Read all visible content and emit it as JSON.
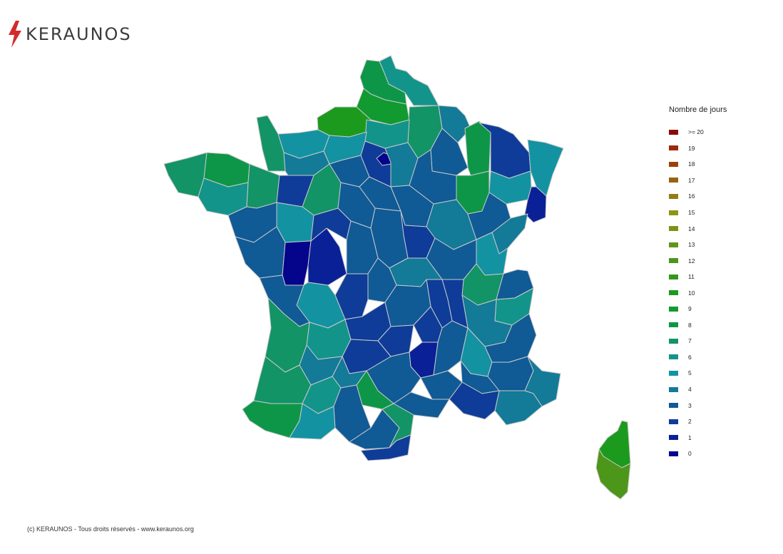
{
  "logo": {
    "text": "KERAUNOS",
    "icon": "lightning-bolt-icon",
    "icon_color": "#d42a2a"
  },
  "legend": {
    "title": "Nombre de jours",
    "items": [
      {
        "label": ">= 20",
        "color": "#8b0a0a"
      },
      {
        "label": "19",
        "color": "#9a2a0a"
      },
      {
        "label": "18",
        "color": "#9a420a"
      },
      {
        "label": "17",
        "color": "#966310"
      },
      {
        "label": "16",
        "color": "#937c12"
      },
      {
        "label": "15",
        "color": "#8f9414"
      },
      {
        "label": "14",
        "color": "#7c9416"
      },
      {
        "label": "13",
        "color": "#63941a"
      },
      {
        "label": "12",
        "color": "#4c961a"
      },
      {
        "label": "11",
        "color": "#32981c"
      },
      {
        "label": "10",
        "color": "#1c9a1e"
      },
      {
        "label": "9",
        "color": "#109a30"
      },
      {
        "label": "8",
        "color": "#0e9648"
      },
      {
        "label": "7",
        "color": "#129466"
      },
      {
        "label": "6",
        "color": "#13948a"
      },
      {
        "label": "5",
        "color": "#1392a2"
      },
      {
        "label": "4",
        "color": "#137a98"
      },
      {
        "label": "3",
        "color": "#105a96"
      },
      {
        "label": "2",
        "color": "#0e3c98"
      },
      {
        "label": "1",
        "color": "#0a2096"
      },
      {
        "label": "0",
        "color": "#04058a"
      }
    ]
  },
  "footer": {
    "text": "(c) KERAUNOS - Tous droits réservés - www.keraunos.org"
  },
  "map": {
    "regions": [
      {
        "name": "nord",
        "value": 6
      },
      {
        "name": "pas-de-calais",
        "value": 8
      },
      {
        "name": "somme",
        "value": 9
      },
      {
        "name": "seine-maritime",
        "value": 10
      },
      {
        "name": "aisne",
        "value": 7
      },
      {
        "name": "oise",
        "value": 6
      },
      {
        "name": "ardennes",
        "value": 4
      },
      {
        "name": "marne",
        "value": 3
      },
      {
        "name": "meuse",
        "value": 8
      },
      {
        "name": "moselle",
        "value": 2
      },
      {
        "name": "bas-rhin",
        "value": 5
      },
      {
        "name": "haut-rhin",
        "value": 1
      },
      {
        "name": "vosges",
        "value": 5
      },
      {
        "name": "meurthe-et-moselle",
        "value": 5
      },
      {
        "name": "haute-marne",
        "value": 8
      },
      {
        "name": "calvados",
        "value": 5
      },
      {
        "name": "manche",
        "value": 7
      },
      {
        "name": "orne",
        "value": 4
      },
      {
        "name": "eure",
        "value": 5
      },
      {
        "name": "finistere",
        "value": 7
      },
      {
        "name": "cotes-darmor",
        "value": 8
      },
      {
        "name": "morbihan",
        "value": 6
      },
      {
        "name": "ille-et-vilaine",
        "value": 7
      },
      {
        "name": "mayenne",
        "value": 2
      },
      {
        "name": "sarthe",
        "value": 7
      },
      {
        "name": "loire-atlantique",
        "value": 3
      },
      {
        "name": "maine-et-loire",
        "value": 5
      },
      {
        "name": "vendee",
        "value": 3
      },
      {
        "name": "deux-sevres",
        "value": 0
      },
      {
        "name": "vienne",
        "value": 1
      },
      {
        "name": "indre-et-loire",
        "value": 2
      },
      {
        "name": "loir-et-cher",
        "value": 3
      },
      {
        "name": "loiret",
        "value": 3
      },
      {
        "name": "eure-et-loir",
        "value": 3
      },
      {
        "name": "paris",
        "value": 0
      },
      {
        "name": "essonne",
        "value": 2
      },
      {
        "name": "seine-et-marne",
        "value": 4
      },
      {
        "name": "aube",
        "value": 3
      },
      {
        "name": "yonne",
        "value": 3
      },
      {
        "name": "cote-dor",
        "value": 4
      },
      {
        "name": "haute-saone",
        "value": 3
      },
      {
        "name": "doubs",
        "value": 4
      },
      {
        "name": "jura",
        "value": 5
      },
      {
        "name": "nievre",
        "value": 2
      },
      {
        "name": "cher",
        "value": 3
      },
      {
        "name": "indre",
        "value": 3
      },
      {
        "name": "saone-et-loire",
        "value": 3
      },
      {
        "name": "ain",
        "value": 7
      },
      {
        "name": "haute-savoie",
        "value": 3
      },
      {
        "name": "savoie",
        "value": 6
      },
      {
        "name": "isere",
        "value": 4
      },
      {
        "name": "rhone",
        "value": 2
      },
      {
        "name": "loire",
        "value": 2
      },
      {
        "name": "allier",
        "value": 4
      },
      {
        "name": "creuse",
        "value": 3
      },
      {
        "name": "haute-vienne",
        "value": 2
      },
      {
        "name": "charente",
        "value": 5
      },
      {
        "name": "charente-maritime",
        "value": 3
      },
      {
        "name": "dordogne",
        "value": 6
      },
      {
        "name": "correze",
        "value": 2
      },
      {
        "name": "puy-de-dome",
        "value": 3
      },
      {
        "name": "cantal",
        "value": 2
      },
      {
        "name": "haute-loire",
        "value": 2
      },
      {
        "name": "lozere",
        "value": 1
      },
      {
        "name": "ardeche",
        "value": 3
      },
      {
        "name": "drome",
        "value": 5
      },
      {
        "name": "hautes-alpes",
        "value": 3
      },
      {
        "name": "alpes-de-haute-provence",
        "value": 3
      },
      {
        "name": "alpes-maritimes",
        "value": 4
      },
      {
        "name": "var",
        "value": 4
      },
      {
        "name": "vaucluse",
        "value": 3
      },
      {
        "name": "bouches-du-rhone",
        "value": 2
      },
      {
        "name": "gard",
        "value": 3
      },
      {
        "name": "herault",
        "value": 3
      },
      {
        "name": "aveyron",
        "value": 3
      },
      {
        "name": "lot",
        "value": 2
      },
      {
        "name": "tarn",
        "value": 8
      },
      {
        "name": "tarn-et-garonne",
        "value": 4
      },
      {
        "name": "lot-et-garonne",
        "value": 4
      },
      {
        "name": "gironde",
        "value": 7
      },
      {
        "name": "landes",
        "value": 7
      },
      {
        "name": "pyrenees-atlantiques",
        "value": 8
      },
      {
        "name": "gers",
        "value": 6
      },
      {
        "name": "hautes-pyrenees",
        "value": 5
      },
      {
        "name": "haute-garonne",
        "value": 3
      },
      {
        "name": "ariege",
        "value": 3
      },
      {
        "name": "aude",
        "value": 7
      },
      {
        "name": "pyrenees-orientales",
        "value": 2
      },
      {
        "name": "haute-corse",
        "value": 10
      },
      {
        "name": "corse-du-sud",
        "value": 12
      }
    ]
  }
}
